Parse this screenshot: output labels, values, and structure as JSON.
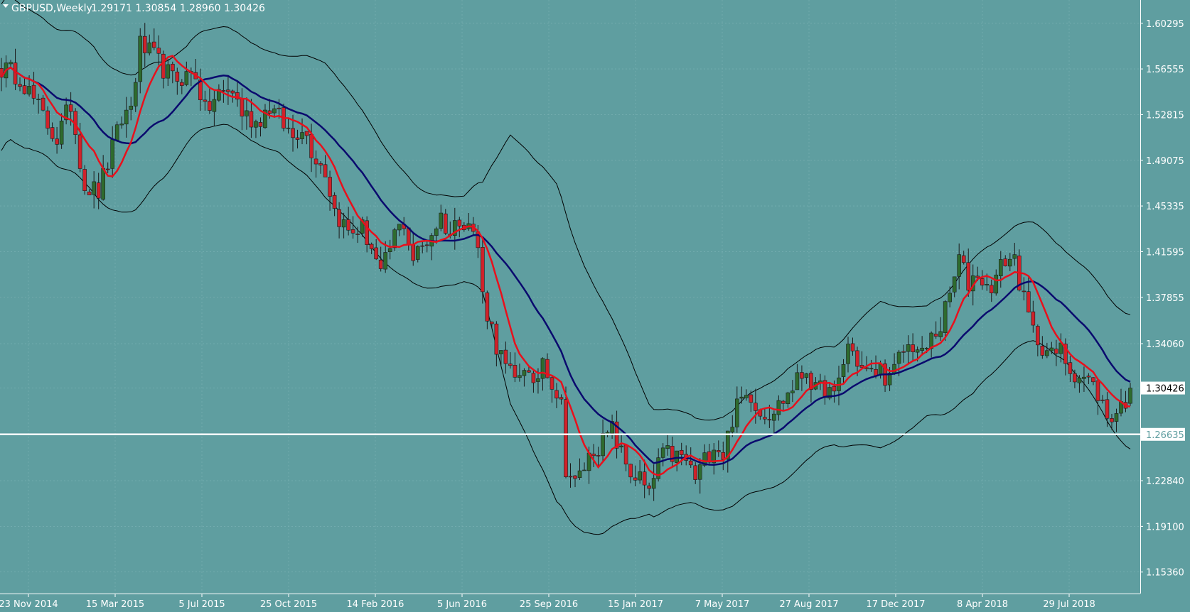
{
  "header": {
    "symbol": "GBPUSD,Weekly",
    "ohlc": "1.29171 1.30854 1.28960 1.30426"
  },
  "colors": {
    "background": "#5f9ea0",
    "bull": "#2e6b2e",
    "bear": "#d0222a",
    "ma_fast": "#e8101c",
    "ma_slow": "#0a0a6e",
    "bands": "#000000",
    "hline": "#ffffff"
  },
  "chart_data": {
    "type": "candlestick",
    "timeframe": "Weekly",
    "ylim": [
      1.136,
      1.622
    ],
    "y_ticks": [
      "1.60295",
      "1.56555",
      "1.52815",
      "1.49075",
      "1.45335",
      "1.41595",
      "1.37855",
      "1.34060",
      "1.30426",
      "1.26635",
      "1.22840",
      "1.19100",
      "1.15360"
    ],
    "x_ticks": [
      "23 Nov 2014",
      "15 Mar 2015",
      "5 Jul 2015",
      "25 Oct 2015",
      "14 Feb 2016",
      "5 Jun 2016",
      "25 Sep 2016",
      "15 Jan 2017",
      "7 May 2017",
      "27 Aug 2017",
      "17 Dec 2017",
      "8 Apr 2018",
      "29 Jul 2018"
    ],
    "current_price": "1.30426",
    "horizontal_line": "1.26635",
    "price_path": [
      [
        0,
        1.566
      ],
      [
        4,
        1.56
      ],
      [
        7,
        1.54
      ],
      [
        10,
        1.52
      ],
      [
        12,
        1.508
      ],
      [
        15,
        1.537
      ],
      [
        18,
        1.47
      ],
      [
        21,
        1.465
      ],
      [
        24,
        1.5
      ],
      [
        26,
        1.524
      ],
      [
        28,
        1.535
      ],
      [
        30,
        1.585
      ],
      [
        33,
        1.575
      ],
      [
        37,
        1.557
      ],
      [
        40,
        1.56
      ],
      [
        42,
        1.562
      ],
      [
        44,
        1.53
      ],
      [
        47,
        1.545
      ],
      [
        50,
        1.548
      ],
      [
        52,
        1.53
      ],
      [
        55,
        1.522
      ],
      [
        58,
        1.535
      ],
      [
        61,
        1.52
      ],
      [
        63,
        1.51
      ],
      [
        65,
        1.52
      ],
      [
        67,
        1.5
      ],
      [
        70,
        1.482
      ],
      [
        72,
        1.45
      ],
      [
        75,
        1.432
      ],
      [
        78,
        1.435
      ],
      [
        80,
        1.42
      ],
      [
        82,
        1.395
      ],
      [
        85,
        1.43
      ],
      [
        87,
        1.44
      ],
      [
        89,
        1.41
      ],
      [
        92,
        1.425
      ],
      [
        95,
        1.445
      ],
      [
        97,
        1.43
      ],
      [
        99,
        1.445
      ],
      [
        101,
        1.44
      ],
      [
        103,
        1.42
      ],
      [
        104,
        1.38
      ],
      [
        107,
        1.34
      ],
      [
        109,
        1.32
      ],
      [
        111,
        1.31
      ],
      [
        113,
        1.325
      ],
      [
        115,
        1.3
      ],
      [
        117,
        1.33
      ],
      [
        119,
        1.31
      ],
      [
        121,
        1.29
      ],
      [
        122,
        1.24
      ],
      [
        124,
        1.225
      ],
      [
        126,
        1.24
      ],
      [
        128,
        1.255
      ],
      [
        130,
        1.26
      ],
      [
        132,
        1.27
      ],
      [
        134,
        1.25
      ],
      [
        136,
        1.235
      ],
      [
        138,
        1.23
      ],
      [
        140,
        1.215
      ],
      [
        142,
        1.245
      ],
      [
        144,
        1.25
      ],
      [
        146,
        1.248
      ],
      [
        148,
        1.245
      ],
      [
        150,
        1.23
      ],
      [
        152,
        1.245
      ],
      [
        154,
        1.26
      ],
      [
        156,
        1.25
      ],
      [
        158,
        1.28
      ],
      [
        160,
        1.295
      ],
      [
        162,
        1.3
      ],
      [
        164,
        1.285
      ],
      [
        166,
        1.285
      ],
      [
        168,
        1.29
      ],
      [
        170,
        1.3
      ],
      [
        172,
        1.31
      ],
      [
        174,
        1.32
      ],
      [
        176,
        1.3
      ],
      [
        178,
        1.305
      ],
      [
        180,
        1.295
      ],
      [
        183,
        1.34
      ],
      [
        186,
        1.32
      ],
      [
        188,
        1.315
      ],
      [
        190,
        1.32
      ],
      [
        192,
        1.31
      ],
      [
        195,
        1.335
      ],
      [
        197,
        1.34
      ],
      [
        199,
        1.33
      ],
      [
        201,
        1.345
      ],
      [
        203,
        1.355
      ],
      [
        205,
        1.38
      ],
      [
        207,
        1.41
      ],
      [
        209,
        1.39
      ],
      [
        211,
        1.4
      ],
      [
        213,
        1.385
      ],
      [
        215,
        1.395
      ],
      [
        217,
        1.41
      ],
      [
        219,
        1.41
      ],
      [
        221,
        1.375
      ],
      [
        223,
        1.35
      ],
      [
        225,
        1.34
      ],
      [
        227,
        1.33
      ],
      [
        229,
        1.335
      ],
      [
        231,
        1.32
      ],
      [
        233,
        1.315
      ],
      [
        235,
        1.31
      ],
      [
        237,
        1.3
      ],
      [
        239,
        1.28
      ],
      [
        241,
        1.285
      ],
      [
        243,
        1.295
      ],
      [
        244,
        1.30426
      ]
    ],
    "bands_width_path": [
      [
        0,
        0.06
      ],
      [
        10,
        0.055
      ],
      [
        20,
        0.06
      ],
      [
        30,
        0.055
      ],
      [
        40,
        0.04
      ],
      [
        50,
        0.04
      ],
      [
        60,
        0.04
      ],
      [
        70,
        0.055
      ],
      [
        80,
        0.05
      ],
      [
        90,
        0.04
      ],
      [
        100,
        0.035
      ],
      [
        104,
        0.045
      ],
      [
        110,
        0.11
      ],
      [
        120,
        0.13
      ],
      [
        130,
        0.095
      ],
      [
        140,
        0.045
      ],
      [
        150,
        0.035
      ],
      [
        160,
        0.04
      ],
      [
        170,
        0.045
      ],
      [
        180,
        0.04
      ],
      [
        190,
        0.06
      ],
      [
        200,
        0.045
      ],
      [
        210,
        0.055
      ],
      [
        220,
        0.05
      ],
      [
        230,
        0.045
      ],
      [
        244,
        0.055
      ]
    ]
  }
}
